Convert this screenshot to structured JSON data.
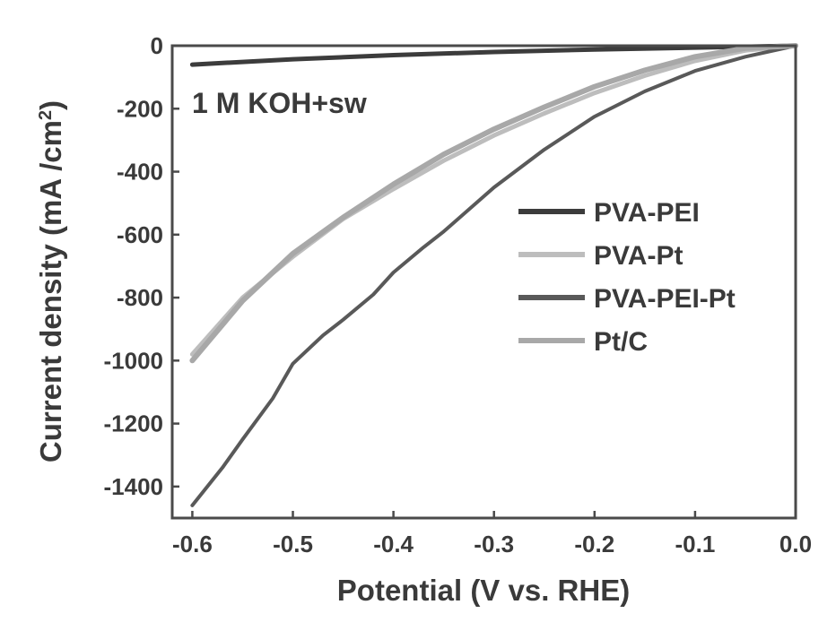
{
  "chart_data": {
    "type": "line",
    "title": "",
    "xlabel": "Potential (V vs. RHE)",
    "ylabel_main": "Current density (mA /cm",
    "ylabel_sup": "2",
    "ylabel_close": ")",
    "xlim": [
      -0.62,
      0.0
    ],
    "ylim": [
      -1500,
      0
    ],
    "xticks": [
      -0.6,
      -0.5,
      -0.4,
      -0.3,
      -0.2,
      -0.1,
      0.0
    ],
    "xtick_labels": [
      "-0.6",
      "-0.5",
      "-0.4",
      "-0.3",
      "-0.2",
      "-0.1",
      "0.0"
    ],
    "yticks": [
      0,
      -200,
      -400,
      -600,
      -800,
      -1000,
      -1200,
      -1400
    ],
    "ytick_labels": [
      "0",
      "-200",
      "-400",
      "-600",
      "-800",
      "-1000",
      "-1200",
      "-1400"
    ],
    "annotation": "1 M KOH+sw",
    "legend_position": "right",
    "series": [
      {
        "name": "PVA-PEI",
        "color": "#3c3c3c",
        "x": [
          -0.6,
          -0.5,
          -0.4,
          -0.3,
          -0.2,
          -0.1,
          -0.05,
          0.0
        ],
        "y": [
          -60,
          -43,
          -30,
          -20,
          -12,
          -6,
          -3,
          0
        ]
      },
      {
        "name": "PVA-Pt",
        "color": "#bdbdbd",
        "x": [
          -0.6,
          -0.55,
          -0.5,
          -0.45,
          -0.4,
          -0.35,
          -0.3,
          -0.25,
          -0.2,
          -0.15,
          -0.1,
          -0.05,
          0.0
        ],
        "y": [
          -980,
          -800,
          -670,
          -550,
          -455,
          -365,
          -285,
          -215,
          -150,
          -95,
          -48,
          -15,
          0
        ]
      },
      {
        "name": "PVA-PEI-Pt",
        "color": "#595959",
        "x": [
          -0.6,
          -0.57,
          -0.55,
          -0.52,
          -0.5,
          -0.47,
          -0.45,
          -0.42,
          -0.4,
          -0.37,
          -0.35,
          -0.3,
          -0.25,
          -0.2,
          -0.15,
          -0.1,
          -0.05,
          0.0
        ],
        "y": [
          -1460,
          -1340,
          -1250,
          -1120,
          -1010,
          -920,
          -870,
          -790,
          -720,
          -640,
          -590,
          -450,
          -330,
          -225,
          -145,
          -80,
          -35,
          0
        ]
      },
      {
        "name": "Pt/C",
        "color": "#a8a8a8",
        "x": [
          -0.6,
          -0.55,
          -0.5,
          -0.45,
          -0.4,
          -0.35,
          -0.3,
          -0.25,
          -0.2,
          -0.15,
          -0.1,
          -0.05,
          0.0
        ],
        "y": [
          -1000,
          -810,
          -660,
          -545,
          -440,
          -345,
          -265,
          -195,
          -130,
          -78,
          -35,
          -8,
          0
        ]
      }
    ]
  }
}
